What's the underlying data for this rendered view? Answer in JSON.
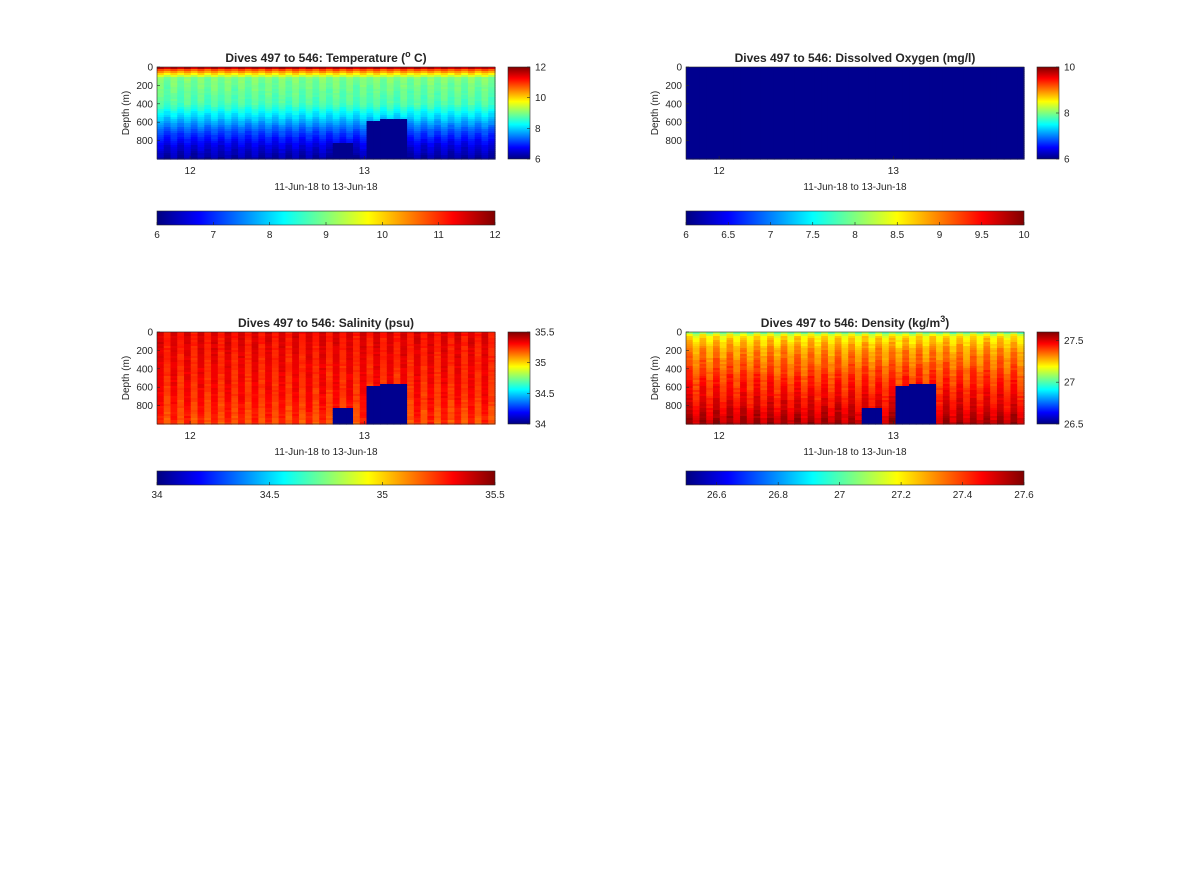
{
  "figure": {
    "background": "#ffffff",
    "colormap": "jet",
    "colormap_stops": [
      "#00007f",
      "#0000ff",
      "#007fff",
      "#00ffff",
      "#7fff7f",
      "#ffff00",
      "#ff7f00",
      "#ff0000",
      "#7f0000"
    ],
    "missing_color": "#00008f"
  },
  "chart_data": [
    {
      "type": "heatmap",
      "id": "temperature",
      "title": "Dives 497 to 546: Temperature (",
      "title_sup": "o",
      "title_end": " C)",
      "ylabel": "Depth (m)",
      "xlabel": "11-Jun-18 to 13-Jun-18",
      "x_ticks": [
        "12",
        "13"
      ],
      "x_tick_days": [
        12,
        13
      ],
      "xlim_days": [
        11.81,
        13.75
      ],
      "y_ticks": [
        "0",
        "200",
        "400",
        "600",
        "800"
      ],
      "y_tick_values": [
        0,
        200,
        400,
        600,
        800
      ],
      "ylim": [
        0,
        1000
      ],
      "y_reversed": true,
      "clim": [
        6,
        12
      ],
      "colorbar_ticks": [
        "12",
        "10",
        "8",
        "6"
      ],
      "colorbar_tick_values": [
        12,
        10,
        8,
        6
      ],
      "h_colorbar_ticks": [
        "6",
        "7",
        "8",
        "9",
        "10",
        "11",
        "12"
      ],
      "h_colorbar_tick_values": [
        6,
        7,
        8,
        9,
        10,
        11,
        12
      ],
      "n_profiles": 50,
      "profile": {
        "surface": 12.0,
        "depth_values": [
          [
            0,
            12.0
          ],
          [
            30,
            10.8
          ],
          [
            120,
            9.0
          ],
          [
            400,
            8.7
          ],
          [
            550,
            8.0
          ],
          [
            700,
            7.2
          ],
          [
            850,
            6.6
          ],
          [
            1000,
            6.2
          ]
        ]
      },
      "stripe_amp": 0.15,
      "missing_blocks": [
        {
          "x0": 12.83,
          "x1": 12.95,
          "depth_top": 820
        },
        {
          "x0": 13.0,
          "x1": 13.1,
          "depth_top": 580
        },
        {
          "x0": 13.1,
          "x1": 13.25,
          "depth_top": 560
        }
      ]
    },
    {
      "type": "heatmap",
      "id": "oxygen",
      "title": "Dives 497 to 546: Dissolved Oxygen (mg/l)",
      "ylabel": "Depth (m)",
      "xlabel": "11-Jun-18 to 13-Jun-18",
      "x_ticks": [
        "12",
        "13"
      ],
      "x_tick_days": [
        12,
        13
      ],
      "xlim_days": [
        11.81,
        13.75
      ],
      "y_ticks": [
        "0",
        "200",
        "400",
        "600",
        "800"
      ],
      "y_tick_values": [
        0,
        200,
        400,
        600,
        800
      ],
      "ylim": [
        0,
        1000
      ],
      "y_reversed": true,
      "clim": [
        6,
        10
      ],
      "colorbar_ticks": [
        "10",
        "8",
        "6"
      ],
      "colorbar_tick_values": [
        10,
        8,
        6
      ],
      "h_colorbar_ticks": [
        "6",
        "6.5",
        "7",
        "7.5",
        "8",
        "8.5",
        "9",
        "9.5",
        "10"
      ],
      "h_colorbar_tick_values": [
        6,
        6.5,
        7,
        7.5,
        8,
        8.5,
        9,
        9.5,
        10
      ],
      "n_profiles": 50,
      "uniform_missing": true,
      "missing_blocks": []
    },
    {
      "type": "heatmap",
      "id": "salinity",
      "title": "Dives 497 to 546: Salinity (psu)",
      "ylabel": "Depth (m)",
      "xlabel": "11-Jun-18 to 13-Jun-18",
      "x_ticks": [
        "12",
        "13"
      ],
      "x_tick_days": [
        12,
        13
      ],
      "xlim_days": [
        11.81,
        13.75
      ],
      "y_ticks": [
        "0",
        "200",
        "400",
        "600",
        "800"
      ],
      "y_tick_values": [
        0,
        200,
        400,
        600,
        800
      ],
      "ylim": [
        0,
        1000
      ],
      "y_reversed": true,
      "clim": [
        34,
        35.5
      ],
      "colorbar_ticks": [
        "35.5",
        "35",
        "34.5",
        "34"
      ],
      "colorbar_tick_values": [
        35.5,
        35,
        34.5,
        34
      ],
      "h_colorbar_ticks": [
        "34",
        "34.5",
        "35",
        "35.5"
      ],
      "h_colorbar_tick_values": [
        34,
        34.5,
        35,
        35.5
      ],
      "n_profiles": 50,
      "profile": {
        "depth_values": [
          [
            0,
            35.33
          ],
          [
            300,
            35.3
          ],
          [
            700,
            35.27
          ],
          [
            1000,
            35.22
          ]
        ]
      },
      "stripe_amp": 0.06,
      "missing_blocks": [
        {
          "x0": 12.83,
          "x1": 12.95,
          "depth_top": 820
        },
        {
          "x0": 13.0,
          "x1": 13.1,
          "depth_top": 580
        },
        {
          "x0": 13.1,
          "x1": 13.25,
          "depth_top": 560
        }
      ]
    },
    {
      "type": "heatmap",
      "id": "density",
      "title": "Dives 497 to 546: Density (kg/m",
      "title_sup": "3",
      "title_end": ")",
      "ylabel": "Depth (m)",
      "xlabel": "11-Jun-18 to 13-Jun-18",
      "x_ticks": [
        "12",
        "13"
      ],
      "x_tick_days": [
        12,
        13
      ],
      "xlim_days": [
        11.81,
        13.75
      ],
      "y_ticks": [
        "0",
        "200",
        "400",
        "600",
        "800"
      ],
      "y_tick_values": [
        0,
        200,
        400,
        600,
        800
      ],
      "ylim": [
        0,
        1000
      ],
      "y_reversed": true,
      "clim": [
        26.5,
        27.6
      ],
      "colorbar_ticks": [
        "27.5",
        "27",
        "26.5"
      ],
      "colorbar_tick_values": [
        27.5,
        27,
        26.5
      ],
      "h_colorbar_ticks": [
        "26.6",
        "26.8",
        "27",
        "27.2",
        "27.4",
        "27.6"
      ],
      "h_colorbar_tick_values": [
        26.6,
        26.8,
        27,
        27.2,
        27.4,
        27.6
      ],
      "n_profiles": 50,
      "profile": {
        "depth_values": [
          [
            0,
            27.0
          ],
          [
            40,
            27.2
          ],
          [
            200,
            27.3
          ],
          [
            500,
            27.4
          ],
          [
            800,
            27.48
          ],
          [
            1000,
            27.55
          ]
        ]
      },
      "stripe_amp": 0.05,
      "missing_blocks": [
        {
          "x0": 12.83,
          "x1": 12.95,
          "depth_top": 820
        },
        {
          "x0": 13.0,
          "x1": 13.1,
          "depth_top": 580
        },
        {
          "x0": 13.1,
          "x1": 13.25,
          "depth_top": 560
        }
      ]
    }
  ]
}
